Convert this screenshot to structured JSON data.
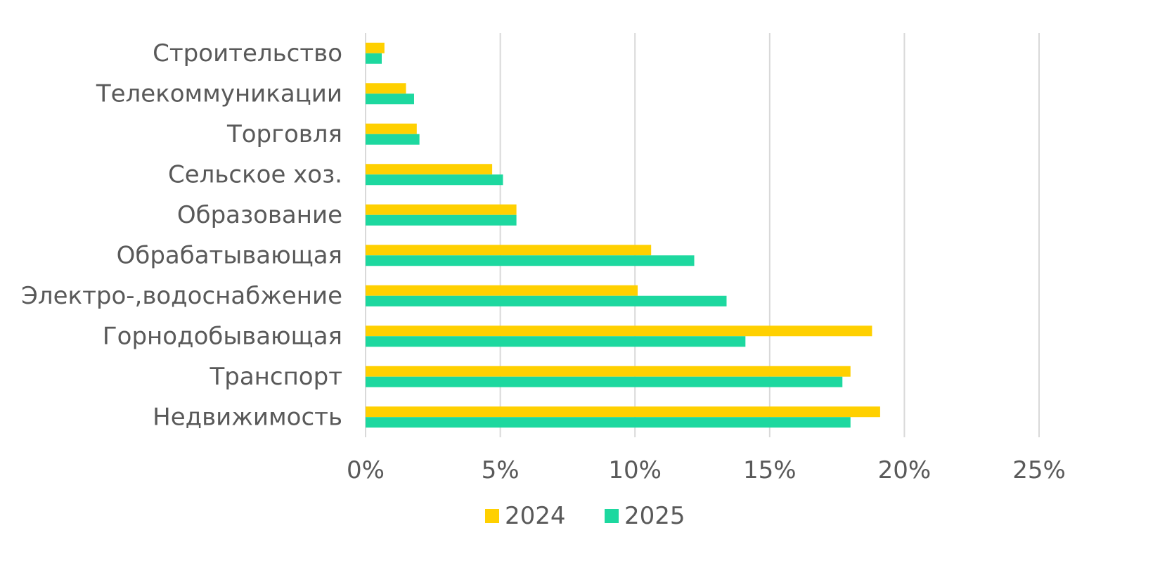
{
  "chart_data": {
    "type": "bar",
    "orientation": "horizontal",
    "categories": [
      "Строительство",
      "Телекоммуникации",
      "Торговля",
      "Сельское хоз.",
      "Образование",
      "Обрабатывающая",
      "Электро-,водоснабжение",
      "Горнодобывающая",
      "Транспорт",
      "Недвижимость"
    ],
    "series": [
      {
        "name": "2024",
        "color": "#FFD000",
        "values": [
          0.7,
          1.5,
          1.9,
          4.7,
          5.6,
          10.6,
          10.1,
          18.8,
          18.0,
          19.1
        ]
      },
      {
        "name": "2025",
        "color": "#1DD89F",
        "values": [
          0.6,
          1.8,
          2.0,
          5.1,
          5.6,
          12.2,
          13.4,
          14.1,
          17.7,
          18.0
        ]
      }
    ],
    "xticks": [
      "0%",
      "5%",
      "10%",
      "15%",
      "20%",
      "25%"
    ],
    "xlim": [
      0,
      25
    ],
    "grid": "vertical",
    "legend_position": "bottom",
    "title": "",
    "xlabel": "",
    "ylabel": ""
  }
}
